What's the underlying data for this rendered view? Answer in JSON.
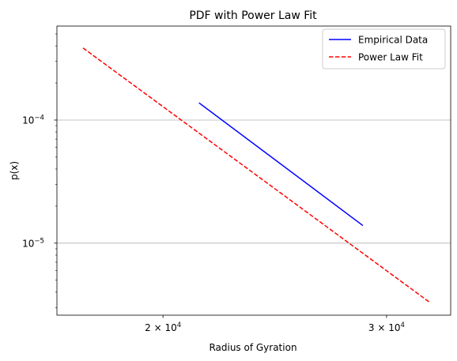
{
  "chart_data": {
    "type": "line",
    "title": "PDF with Power Law Fit",
    "xlabel": "Radius of Gyration",
    "ylabel": "p(x)",
    "xscale": "log",
    "yscale": "log",
    "xlim": [
      16500,
      33700
    ],
    "ylim": [
      2.6e-06,
      0.00058
    ],
    "grid": "y-major",
    "legend_position": "top-right",
    "x_ticks": [
      {
        "value": 20000,
        "mantissa": "2",
        "times": "×",
        "base": "10",
        "exp": "4"
      },
      {
        "value": 30000,
        "mantissa": "3",
        "times": "×",
        "base": "10",
        "exp": "4"
      }
    ],
    "y_ticks": [
      {
        "value": 0.0001,
        "base": "10",
        "exp": "−4"
      },
      {
        "value": 1e-05,
        "base": "10",
        "exp": "−5"
      }
    ],
    "y_minor_ticks": [
      3e-06,
      4e-06,
      5e-06,
      6e-06,
      7e-06,
      8e-06,
      9e-06,
      2e-05,
      3e-05,
      4e-05,
      5e-05,
      6e-05,
      7e-05,
      8e-05,
      9e-05,
      0.0002,
      0.0003,
      0.0004,
      0.0005
    ],
    "series": [
      {
        "name": "Empirical Data",
        "color": "#0000ff",
        "style": "solid",
        "x": [
          21350,
          28740
        ],
        "y": [
          0.000138,
          1.39e-05
        ]
      },
      {
        "name": "Power Law Fit",
        "color": "#ff0000",
        "style": "dashed",
        "x": [
          17300,
          32450
        ],
        "y": [
          0.000385,
          3.3e-06
        ]
      }
    ]
  }
}
